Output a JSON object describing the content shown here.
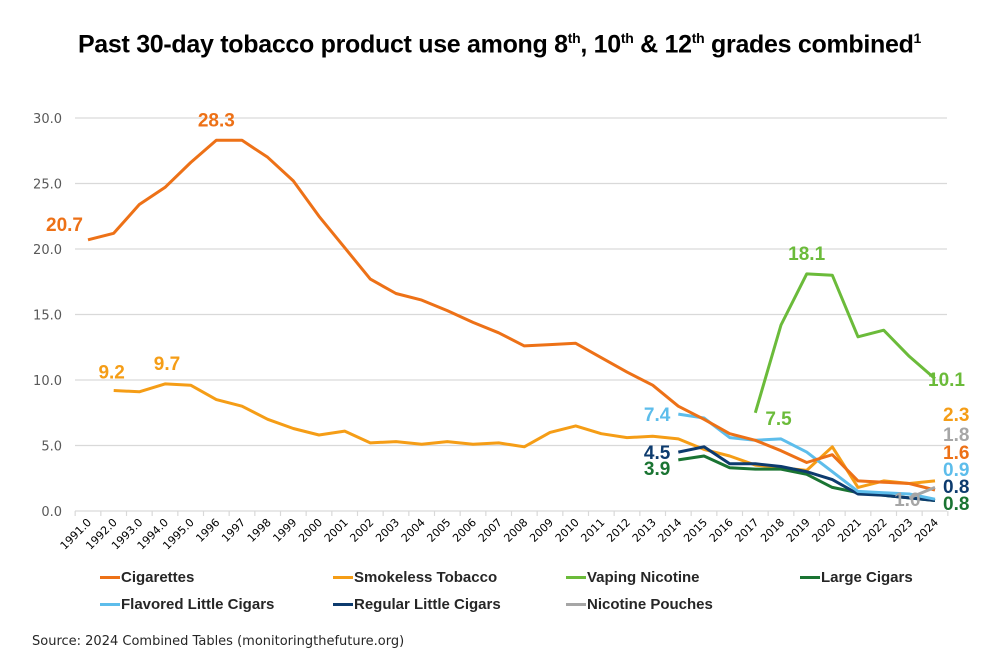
{
  "chart_data": {
    "type": "line",
    "title": "Past 30-day tobacco product use among 8th, 10th & 12th grades combined¹",
    "title_parts": {
      "pre": "Past 30-day tobacco product use among 8",
      "sup1": "th",
      "mid1": ", 10",
      "sup2": "th",
      "mid2": " & 12",
      "sup3": "th",
      "post": " grades combined",
      "footnote": "1"
    },
    "xlabel": "",
    "ylabel": "",
    "ylim": [
      0,
      30
    ],
    "yticks": [
      "0.0",
      "5.0",
      "10.0",
      "15.0",
      "20.0",
      "25.0",
      "30.0"
    ],
    "grid": true,
    "legend_position": "bottom",
    "categories": [
      "1991.0",
      "1992.0",
      "1993.0",
      "1994.0",
      "1995.0",
      "1996",
      "1997",
      "1998",
      "1999",
      "2000",
      "2001",
      "2002",
      "2003",
      "2004",
      "2005",
      "2006",
      "2007",
      "2008",
      "2009",
      "2010",
      "2011",
      "2012",
      "2013",
      "2014",
      "2015",
      "2016",
      "2017",
      "2018",
      "2019",
      "2020",
      "2021",
      "2022",
      "2023",
      "2024"
    ],
    "series": [
      {
        "name": "Cigarettes",
        "color": "#ED7117",
        "values": [
          20.7,
          21.2,
          23.4,
          24.7,
          26.6,
          28.3,
          28.3,
          27.0,
          25.2,
          22.5,
          20.1,
          17.7,
          16.6,
          16.1,
          15.3,
          14.4,
          13.6,
          12.6,
          12.7,
          12.8,
          11.7,
          10.6,
          9.6,
          8.0,
          7.0,
          5.9,
          5.4,
          4.6,
          3.7,
          4.3,
          2.3,
          2.2,
          2.1,
          1.6
        ],
        "labels": [
          {
            "index": 0,
            "text": "20.7"
          },
          {
            "index": 5,
            "text": "28.3"
          },
          {
            "index": 33,
            "text": "1.6"
          }
        ]
      },
      {
        "name": "Smokeless Tobacco",
        "color": "#F59D16",
        "values": [
          null,
          9.2,
          9.1,
          9.7,
          9.6,
          8.5,
          8.0,
          7.0,
          6.3,
          5.8,
          6.1,
          5.2,
          5.3,
          5.1,
          5.3,
          5.1,
          5.2,
          4.9,
          6.0,
          6.5,
          5.9,
          5.6,
          5.7,
          5.5,
          4.7,
          4.2,
          3.5,
          3.3,
          3.1,
          4.9,
          1.8,
          2.3,
          2.1,
          2.3
        ],
        "labels": [
          {
            "index": 1,
            "text": "9.2"
          },
          {
            "index": 3,
            "text": "9.7"
          },
          {
            "index": 33,
            "text": "2.3"
          }
        ]
      },
      {
        "name": "Vaping Nicotine",
        "color": "#6BBB3A",
        "values": [
          null,
          null,
          null,
          null,
          null,
          null,
          null,
          null,
          null,
          null,
          null,
          null,
          null,
          null,
          null,
          null,
          null,
          null,
          null,
          null,
          null,
          null,
          null,
          null,
          null,
          null,
          7.5,
          14.2,
          18.1,
          18.0,
          13.3,
          13.8,
          11.8,
          10.1
        ],
        "labels": [
          {
            "index": 26,
            "text": "7.5"
          },
          {
            "index": 28,
            "text": "18.1"
          },
          {
            "index": 33,
            "text": "10.1"
          }
        ]
      },
      {
        "name": "Large Cigars",
        "color": "#1A7432",
        "values": [
          null,
          null,
          null,
          null,
          null,
          null,
          null,
          null,
          null,
          null,
          null,
          null,
          null,
          null,
          null,
          null,
          null,
          null,
          null,
          null,
          null,
          null,
          null,
          3.9,
          4.2,
          3.3,
          3.2,
          3.2,
          2.8,
          1.8,
          1.4,
          1.2,
          1.0,
          0.8
        ],
        "labels": [
          {
            "index": 23,
            "text": "3.9"
          },
          {
            "index": 33,
            "text": "0.8"
          }
        ]
      },
      {
        "name": "Flavored Little Cigars",
        "color": "#5DBDEB",
        "values": [
          null,
          null,
          null,
          null,
          null,
          null,
          null,
          null,
          null,
          null,
          null,
          null,
          null,
          null,
          null,
          null,
          null,
          null,
          null,
          null,
          null,
          null,
          null,
          7.4,
          7.1,
          5.6,
          5.4,
          5.5,
          4.5,
          3.0,
          1.5,
          1.4,
          1.3,
          0.9
        ],
        "labels": [
          {
            "index": 23,
            "text": "7.4"
          },
          {
            "index": 33,
            "text": "0.9"
          }
        ]
      },
      {
        "name": "Regular Little Cigars",
        "color": "#0D3B6E",
        "values": [
          null,
          null,
          null,
          null,
          null,
          null,
          null,
          null,
          null,
          null,
          null,
          null,
          null,
          null,
          null,
          null,
          null,
          null,
          null,
          null,
          null,
          null,
          null,
          4.5,
          4.9,
          3.6,
          3.6,
          3.4,
          3.0,
          2.4,
          1.3,
          1.2,
          1.0,
          0.8
        ],
        "labels": [
          {
            "index": 23,
            "text": "4.5"
          },
          {
            "index": 33,
            "text": "0.8"
          }
        ]
      },
      {
        "name": "Nicotine Pouches",
        "color": "#A6A6A6",
        "values": [
          null,
          null,
          null,
          null,
          null,
          null,
          null,
          null,
          null,
          null,
          null,
          null,
          null,
          null,
          null,
          null,
          null,
          null,
          null,
          null,
          null,
          null,
          null,
          null,
          null,
          null,
          null,
          null,
          null,
          null,
          null,
          null,
          1.0,
          1.8
        ],
        "labels": [
          {
            "index": 32,
            "text": "1.0"
          },
          {
            "index": 33,
            "text": "1.8"
          }
        ]
      }
    ]
  },
  "source": "Source: 2024 Combined Tables (monitoringthefuture.org)"
}
